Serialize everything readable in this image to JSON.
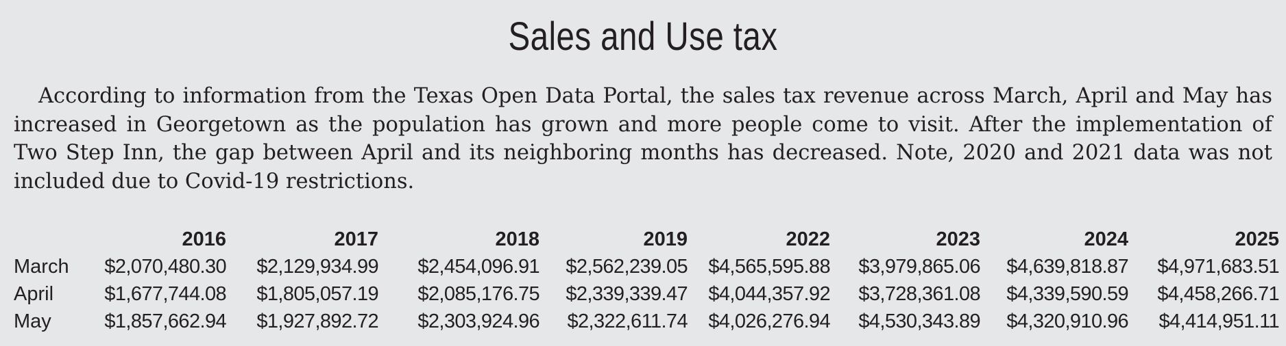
{
  "header": {
    "title": "Sales and Use tax"
  },
  "intro": "According to information from the Texas Open Data Portal, the sales tax revenue across March, April and May has increased in Georgetown as the population has grown and more people come to visit. After the implementation of Two Step Inn, the gap between April and its neighboring months has decreased. Note, 2020 and 2021 data was not included due to Covid-19 restrictions.",
  "table": {
    "columns": [
      "2016",
      "2017",
      "2018",
      "2019",
      "2022",
      "2023",
      "2024",
      "2025"
    ],
    "rows": [
      {
        "label": "March",
        "values": [
          "$2,070,480.30",
          "$2,129,934.99",
          "$2,454,096.91",
          "$2,562,239.05",
          "$4,565,595.88",
          "$3,979,865.06",
          "$4,639,818.87",
          "$4,971,683.51"
        ]
      },
      {
        "label": "April",
        "values": [
          "$1,677,744.08",
          "$1,805,057.19",
          "$2,085,176.75",
          "$2,339,339.47",
          "$4,044,357.92",
          "$3,728,361.08",
          "$4,339,590.59",
          "$4,458,266.71"
        ]
      },
      {
        "label": "May",
        "values": [
          "$1,857,662.94",
          "$1,927,892.72",
          "$2,303,924.96",
          "$2,322,611.74",
          "$4,026,276.94",
          "$4,530,343.89",
          "$4,320,910.96",
          "$4,414,951.11"
        ]
      }
    ]
  }
}
